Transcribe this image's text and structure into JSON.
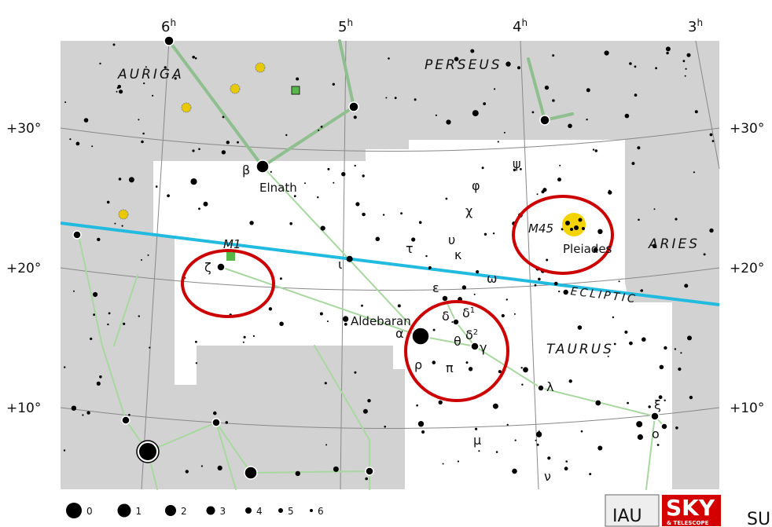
{
  "ra_unit": "h",
  "ra_hours": [
    "6",
    "5",
    "4",
    "3"
  ],
  "dec_labels": [
    "+30°",
    "+20°",
    "+10°"
  ],
  "constellations": [
    "AURIGA",
    "PERSEUS",
    "ARIES",
    "TAURUS"
  ],
  "ecliptic": "ECLIPTIC",
  "names": [
    "Elnath",
    "Aldebaran",
    "Pleiades",
    "M45",
    "M1"
  ],
  "greek": [
    {
      "text": "β"
    },
    {
      "text": "ζ"
    },
    {
      "text": "ι"
    },
    {
      "text": "τ"
    },
    {
      "text": "ε"
    },
    {
      "text": "δ"
    },
    {
      "text": "δ",
      "sup": "1"
    },
    {
      "text": "δ",
      "sup": "2"
    },
    {
      "text": "α"
    },
    {
      "text": "θ"
    },
    {
      "text": "γ"
    },
    {
      "text": "ρ"
    },
    {
      "text": "π"
    },
    {
      "text": "λ"
    },
    {
      "text": "ξ"
    },
    {
      "text": "ο"
    },
    {
      "text": "μ"
    },
    {
      "text": "ν"
    },
    {
      "text": "ψ"
    },
    {
      "text": "φ"
    },
    {
      "text": "χ"
    },
    {
      "text": "υ"
    },
    {
      "text": "κ"
    },
    {
      "text": "ω"
    }
  ],
  "magnitudes": [
    "0",
    "1",
    "2",
    "3",
    "4",
    "5",
    "6"
  ],
  "logos": {
    "iau": "IAU",
    "sky": "SKY",
    "telescope": "& TELESCOPE",
    "cut": "SU"
  }
}
